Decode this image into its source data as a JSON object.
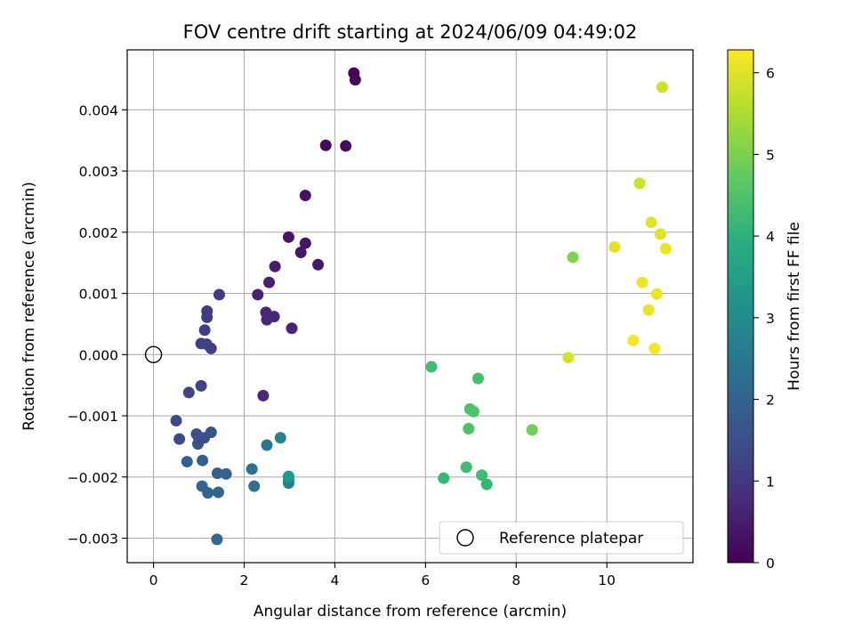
{
  "chart_data": {
    "type": "scatter",
    "title": "FOV centre drift starting at 2024/06/09 04:49:02",
    "xlabel": "Angular distance from reference (arcmin)",
    "ylabel": "Rotation from reference (arcmin)",
    "xlim": [
      -0.58,
      11.9
    ],
    "ylim": [
      -0.0034,
      0.00498
    ],
    "x_ticks": [
      0,
      2,
      4,
      6,
      8,
      10
    ],
    "x_tick_labels": [
      "0",
      "2",
      "4",
      "6",
      "8",
      "10"
    ],
    "y_ticks": [
      -0.003,
      -0.002,
      -0.001,
      0.0,
      0.001,
      0.002,
      0.003,
      0.004
    ],
    "y_tick_labels": [
      "−0.003",
      "−0.002",
      "−0.001",
      "0.000",
      "0.001",
      "0.002",
      "0.003",
      "0.004"
    ],
    "grid": true,
    "legend": {
      "placement": "lower-right",
      "entries": [
        "Reference platepar"
      ]
    },
    "colorbar": {
      "label": "Hours from first FF file",
      "range": [
        0,
        6.28
      ],
      "ticks": [
        0,
        1,
        2,
        3,
        4,
        5,
        6
      ],
      "tick_labels": [
        "0",
        "1",
        "2",
        "3",
        "4",
        "5",
        "6"
      ],
      "colormap": "viridis"
    },
    "reference_point": {
      "name": "Reference platepar",
      "x": 0,
      "y": 0
    },
    "points": [
      {
        "x": 4.42,
        "y": 0.0046,
        "c": 0.05
      },
      {
        "x": 4.45,
        "y": 0.00449,
        "c": 0.1
      },
      {
        "x": 3.8,
        "y": 0.00342,
        "c": 0.2
      },
      {
        "x": 4.24,
        "y": 0.00341,
        "c": 0.22
      },
      {
        "x": 3.35,
        "y": 0.0026,
        "c": 0.3
      },
      {
        "x": 2.98,
        "y": 0.00192,
        "c": 0.35
      },
      {
        "x": 3.35,
        "y": 0.00182,
        "c": 0.38
      },
      {
        "x": 3.25,
        "y": 0.00167,
        "c": 0.4
      },
      {
        "x": 3.63,
        "y": 0.00147,
        "c": 0.42
      },
      {
        "x": 2.68,
        "y": 0.00144,
        "c": 0.5
      },
      {
        "x": 2.55,
        "y": 0.00118,
        "c": 0.55
      },
      {
        "x": 2.3,
        "y": 0.00098,
        "c": 0.6
      },
      {
        "x": 2.48,
        "y": 0.00069,
        "c": 0.65
      },
      {
        "x": 2.66,
        "y": 0.00062,
        "c": 0.68
      },
      {
        "x": 2.5,
        "y": 0.00057,
        "c": 0.7
      },
      {
        "x": 3.05,
        "y": 0.00043,
        "c": 0.6
      },
      {
        "x": 2.42,
        "y": -0.00067,
        "c": 0.75
      },
      {
        "x": 1.45,
        "y": 0.00098,
        "c": 1.1
      },
      {
        "x": 1.18,
        "y": 0.00071,
        "c": 1.1
      },
      {
        "x": 1.18,
        "y": 0.00061,
        "c": 1.15
      },
      {
        "x": 1.13,
        "y": 0.0004,
        "c": 1.15
      },
      {
        "x": 1.05,
        "y": 0.00018,
        "c": 1.2
      },
      {
        "x": 1.17,
        "y": 0.00017,
        "c": 1.2
      },
      {
        "x": 1.27,
        "y": 0.0001,
        "c": 1.25
      },
      {
        "x": 1.05,
        "y": -0.00051,
        "c": 1.3
      },
      {
        "x": 0.78,
        "y": -0.00062,
        "c": 1.3
      },
      {
        "x": 0.5,
        "y": -0.00108,
        "c": 1.35
      },
      {
        "x": 0.57,
        "y": -0.00138,
        "c": 1.4
      },
      {
        "x": 0.95,
        "y": -0.0013,
        "c": 1.5
      },
      {
        "x": 1.0,
        "y": -0.00136,
        "c": 1.55
      },
      {
        "x": 1.12,
        "y": -0.00136,
        "c": 1.55
      },
      {
        "x": 1.27,
        "y": -0.00127,
        "c": 1.6
      },
      {
        "x": 0.98,
        "y": -0.00146,
        "c": 1.6
      },
      {
        "x": 0.74,
        "y": -0.00175,
        "c": 1.9
      },
      {
        "x": 1.08,
        "y": -0.00173,
        "c": 1.9
      },
      {
        "x": 1.41,
        "y": -0.00194,
        "c": 1.9
      },
      {
        "x": 1.6,
        "y": -0.00195,
        "c": 1.95
      },
      {
        "x": 1.07,
        "y": -0.00215,
        "c": 2.0
      },
      {
        "x": 1.2,
        "y": -0.00226,
        "c": 2.0
      },
      {
        "x": 1.43,
        "y": -0.00225,
        "c": 2.0
      },
      {
        "x": 1.4,
        "y": -0.00302,
        "c": 2.1
      },
      {
        "x": 2.17,
        "y": -0.00187,
        "c": 2.3
      },
      {
        "x": 2.22,
        "y": -0.00215,
        "c": 2.3
      },
      {
        "x": 2.5,
        "y": -0.00148,
        "c": 2.5
      },
      {
        "x": 2.8,
        "y": -0.00136,
        "c": 2.8
      },
      {
        "x": 2.98,
        "y": -0.00204,
        "c": 3.0
      },
      {
        "x": 2.98,
        "y": -0.0021,
        "c": 2.7
      },
      {
        "x": 2.98,
        "y": -0.00199,
        "c": 3.4
      },
      {
        "x": 6.13,
        "y": -0.0002,
        "c": 4.3
      },
      {
        "x": 7.16,
        "y": -0.00039,
        "c": 4.4
      },
      {
        "x": 6.98,
        "y": -0.00089,
        "c": 4.5
      },
      {
        "x": 7.06,
        "y": -0.00093,
        "c": 4.5
      },
      {
        "x": 6.95,
        "y": -0.00121,
        "c": 4.5
      },
      {
        "x": 8.35,
        "y": -0.00123,
        "c": 4.9
      },
      {
        "x": 6.4,
        "y": -0.00202,
        "c": 4.2
      },
      {
        "x": 6.9,
        "y": -0.00184,
        "c": 4.3
      },
      {
        "x": 7.24,
        "y": -0.00197,
        "c": 4.3
      },
      {
        "x": 7.35,
        "y": -0.00212,
        "c": 4.2
      },
      {
        "x": 9.25,
        "y": 0.00159,
        "c": 5.1
      },
      {
        "x": 9.15,
        "y": -5e-05,
        "c": 5.9
      },
      {
        "x": 11.22,
        "y": 0.00437,
        "c": 5.8
      },
      {
        "x": 10.72,
        "y": 0.0028,
        "c": 5.8
      },
      {
        "x": 10.98,
        "y": 0.00216,
        "c": 6.0
      },
      {
        "x": 11.18,
        "y": 0.00197,
        "c": 6.0
      },
      {
        "x": 10.17,
        "y": 0.00176,
        "c": 6.0
      },
      {
        "x": 11.3,
        "y": 0.00173,
        "c": 6.1
      },
      {
        "x": 10.78,
        "y": 0.00118,
        "c": 6.1
      },
      {
        "x": 11.1,
        "y": 0.00099,
        "c": 6.1
      },
      {
        "x": 10.92,
        "y": 0.00073,
        "c": 6.1
      },
      {
        "x": 10.58,
        "y": 0.00023,
        "c": 6.2
      },
      {
        "x": 11.05,
        "y": 0.0001,
        "c": 6.2
      }
    ]
  }
}
